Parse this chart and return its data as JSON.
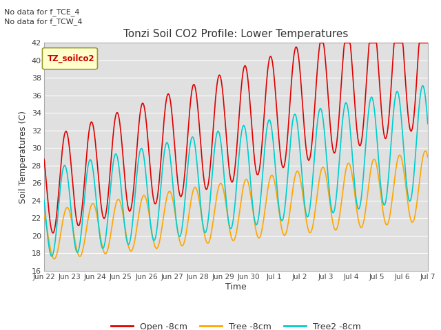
{
  "title": "Tonzi Soil CO2 Profile: Lower Temperatures",
  "ylabel": "Soil Temperatures (C)",
  "xlabel": "Time",
  "text_note1": "No data for f_TCE_4",
  "text_note2": "No data for f_TCW_4",
  "legend_label": "TZ_soilco2",
  "ylim": [
    16,
    42
  ],
  "series_labels": [
    "Open -8cm",
    "Tree -8cm",
    "Tree2 -8cm"
  ],
  "series_colors": [
    "#dd0000",
    "#ffa500",
    "#00cccc"
  ],
  "bg_color": "#e0e0e0",
  "grid_color": "#ffffff",
  "tick_labels": [
    "Jun 22",
    "Jun 23",
    "Jun 24",
    "Jun 25",
    "Jun 26",
    "Jun 27",
    "Jun 28",
    "Jun 29",
    "Jun 30",
    "Jul 1",
    "Jul 2",
    "Jul 3",
    "Jul 4",
    "Jul 5",
    "Jul 6",
    "Jul 7"
  ],
  "yticks": [
    16,
    18,
    20,
    22,
    24,
    26,
    28,
    30,
    32,
    34,
    36,
    38,
    40,
    42
  ]
}
